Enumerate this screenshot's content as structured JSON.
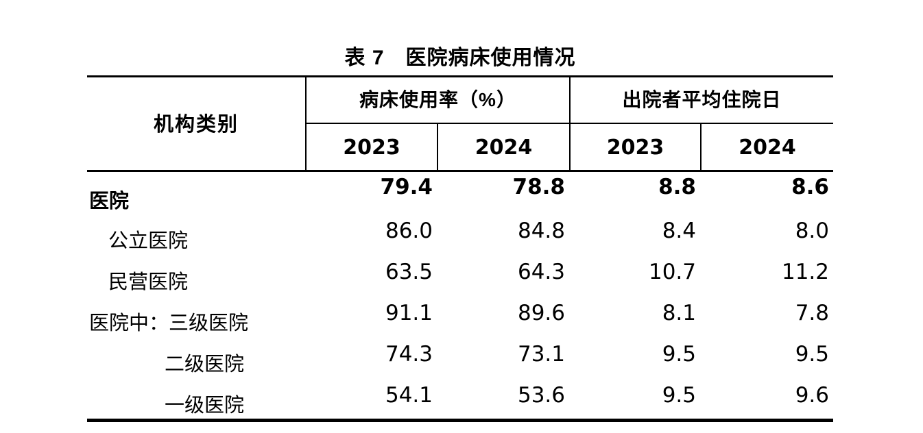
{
  "title": {
    "text": "表 7　医院病床使用情况"
  },
  "table": {
    "org_header": "机构类别",
    "groups": [
      {
        "label": "病床使用率（%）",
        "years": [
          "2023",
          "2024"
        ]
      },
      {
        "label": "出院者平均住院日",
        "years": [
          "2023",
          "2024"
        ]
      }
    ],
    "rows": [
      {
        "label": "医院",
        "values": [
          "79.4",
          "78.8",
          "8.8",
          "8.6"
        ]
      },
      {
        "label": "公立医院",
        "values": [
          "86.0",
          "84.8",
          "8.4",
          "8.0"
        ]
      },
      {
        "label": "民营医院",
        "values": [
          "63.5",
          "64.3",
          "10.7",
          "11.2"
        ]
      },
      {
        "label": "医院中：三级医院",
        "values": [
          "91.1",
          "89.6",
          "8.1",
          "7.8"
        ]
      },
      {
        "label": "二级医院",
        "values": [
          "74.3",
          "73.1",
          "9.5",
          "9.5"
        ]
      },
      {
        "label": "一级医院",
        "values": [
          "54.1",
          "53.6",
          "9.5",
          "9.6"
        ]
      }
    ]
  },
  "colors": {
    "text": "#000000",
    "background": "#ffffff",
    "border": "#000000"
  }
}
